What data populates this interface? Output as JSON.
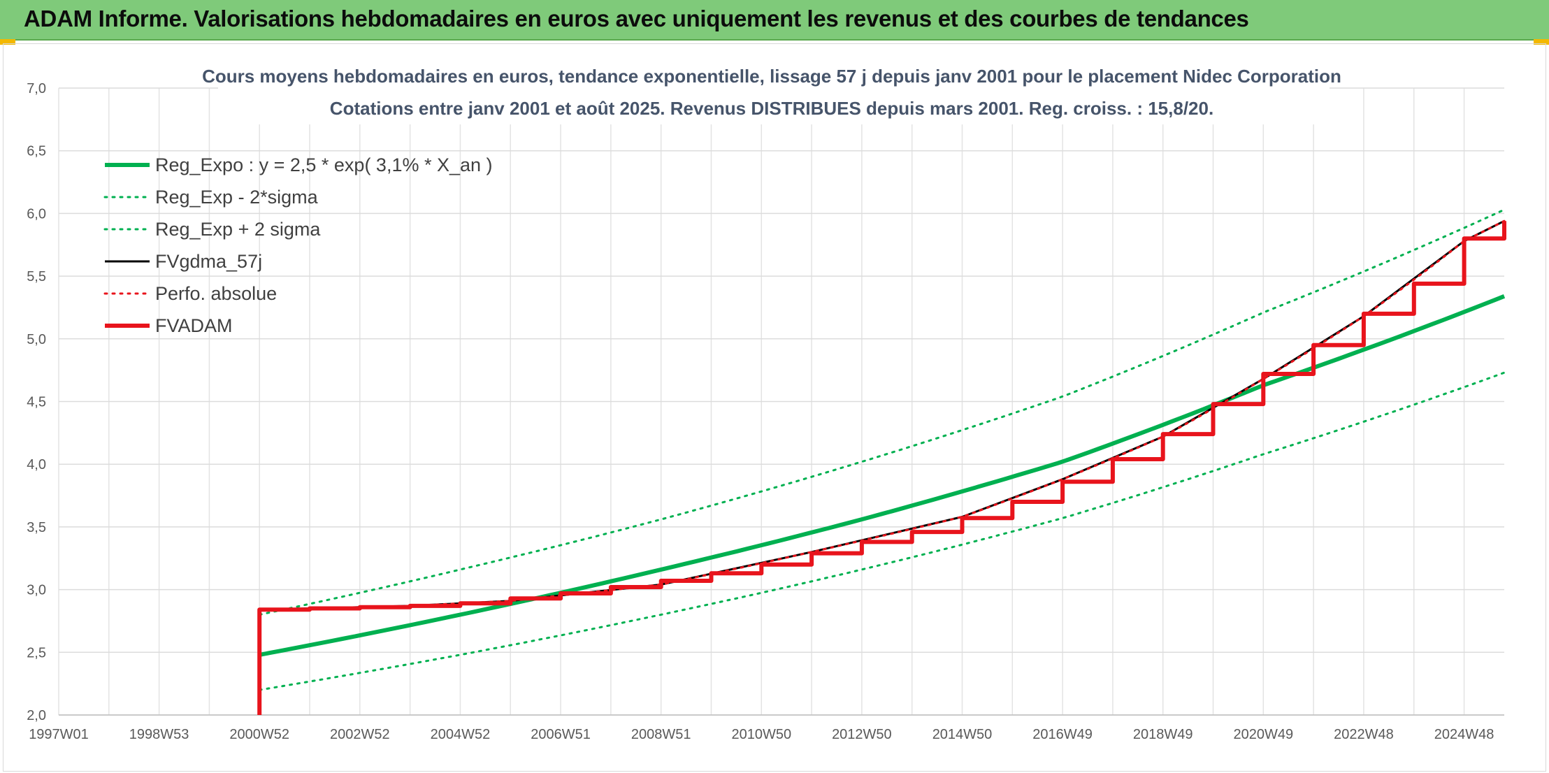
{
  "header": {
    "title": "ADAM Informe. Valorisations hebdomadaires en euros avec uniquement les revenus et des courbes de tendances"
  },
  "colors": {
    "header_bg": "#7fca7a",
    "reg_green": "#00b050",
    "fv_black": "#000000",
    "fvadam_red": "#e8141c",
    "grid": "#d9d9d9"
  },
  "chart_data": {
    "type": "line",
    "title": "Cours moyens hebdomadaires en euros, tendance exponentielle, lissage 57 j depuis janv 2001 pour le placement Nidec Corporation",
    "subtitle": "Cotations entre janv 2001 et août 2025. Revenus DISTRIBUES depuis mars 2001. Reg. croiss. : 15,8/20.",
    "xlabel": "",
    "ylabel": "",
    "ylim": [
      2.0,
      7.0
    ],
    "xlim": [
      1997.0,
      2025.8
    ],
    "y_ticks": [
      "7,0",
      "6,5",
      "6,0",
      "5,5",
      "5,0",
      "4,5",
      "4,0",
      "3,5",
      "3,0",
      "2,5",
      "2,0"
    ],
    "x_ticks": [
      "1997W01",
      "1998W53",
      "2000W52",
      "2002W52",
      "2004W52",
      "2006W51",
      "2008W51",
      "2010W50",
      "2012W50",
      "2014W50",
      "2016W49",
      "2018W49",
      "2020W49",
      "2022W48",
      "2024W48"
    ],
    "x_tick_years": [
      1997.0,
      1999.0,
      2001.0,
      2003.0,
      2005.0,
      2007.0,
      2009.0,
      2011.0,
      2013.0,
      2015.0,
      2017.0,
      2019.0,
      2021.0,
      2023.0,
      2025.0
    ],
    "grid": true,
    "legend_position": "top-left",
    "series": [
      {
        "name": "Reg_Expo : y = 2,5 * exp( 3,1% *  X_an )",
        "style": "solid-thick",
        "color": "#00b050",
        "x": [
          2001.0,
          2005.0,
          2009.0,
          2013.0,
          2017.0,
          2021.0,
          2025.8
        ],
        "y": [
          2.48,
          2.8,
          3.16,
          3.56,
          4.02,
          4.63,
          5.34
        ]
      },
      {
        "name": "Reg_Exp - 2*sigma",
        "style": "dotted",
        "color": "#00b050",
        "x": [
          2001.0,
          2005.0,
          2009.0,
          2013.0,
          2017.0,
          2021.0,
          2025.8
        ],
        "y": [
          2.2,
          2.48,
          2.8,
          3.16,
          3.57,
          4.08,
          4.73
        ]
      },
      {
        "name": "Reg_Exp + 2 sigma",
        "style": "dotted",
        "color": "#00b050",
        "x": [
          2001.0,
          2005.0,
          2009.0,
          2013.0,
          2017.0,
          2021.0,
          2025.8
        ],
        "y": [
          2.8,
          3.16,
          3.56,
          4.02,
          4.54,
          5.21,
          6.03
        ]
      },
      {
        "name": "FVgdma_57j",
        "style": "solid",
        "color": "#000000",
        "x": [
          2001.0,
          2004.0,
          2006.0,
          2009.0,
          2012.0,
          2015.0,
          2017.0,
          2019.0,
          2021.0,
          2023.0,
          2025.0,
          2025.8
        ],
        "y": [
          2.84,
          2.87,
          2.91,
          3.04,
          3.3,
          3.58,
          3.88,
          4.22,
          4.68,
          5.18,
          5.78,
          5.94
        ]
      },
      {
        "name": "Perfo. absolue",
        "style": "dotted",
        "color": "#e8141c",
        "x": [
          2001.0,
          2004.0,
          2006.0,
          2009.0,
          2012.0,
          2015.0,
          2017.0,
          2019.0,
          2021.0,
          2023.0,
          2025.0,
          2025.8
        ],
        "y": [
          2.84,
          2.87,
          2.91,
          3.04,
          3.3,
          3.58,
          3.88,
          4.22,
          4.68,
          5.18,
          5.78,
          5.94
        ]
      },
      {
        "name": "FVADAM",
        "style": "solid-thick-steps",
        "color": "#e8141c",
        "x": [
          2001.0,
          2001.0,
          2002.0,
          2003.0,
          2004.0,
          2005.0,
          2006.0,
          2007.0,
          2008.0,
          2009.0,
          2010.0,
          2011.0,
          2012.0,
          2013.0,
          2014.0,
          2015.0,
          2016.0,
          2017.0,
          2018.0,
          2019.0,
          2020.0,
          2021.0,
          2022.0,
          2023.0,
          2024.0,
          2025.0,
          2025.8
        ],
        "y": [
          2.0,
          2.84,
          2.85,
          2.86,
          2.87,
          2.89,
          2.93,
          2.97,
          3.02,
          3.07,
          3.13,
          3.2,
          3.29,
          3.38,
          3.46,
          3.57,
          3.7,
          3.86,
          4.04,
          4.24,
          4.48,
          4.72,
          4.95,
          5.2,
          5.44,
          5.8,
          5.94
        ]
      }
    ]
  }
}
